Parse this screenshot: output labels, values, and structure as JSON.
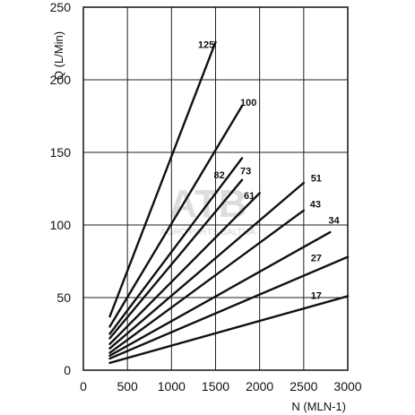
{
  "chart_data": {
    "type": "line",
    "title": "",
    "xlabel": "N (MLN-1)",
    "ylabel": "Q (L/Min)",
    "xlim": [
      0,
      3000
    ],
    "ylim": [
      0,
      250
    ],
    "x_ticks": [
      0,
      500,
      1000,
      1500,
      2000,
      2500,
      3000
    ],
    "y_ticks": [
      0,
      50,
      100,
      150,
      200,
      250
    ],
    "grid": true,
    "legend": "none",
    "watermark": {
      "logo_text": "ATB",
      "sub_text": "AGRO PARTS BALTIJA"
    },
    "series": [
      {
        "name": "125",
        "x": [
          300,
          1500
        ],
        "y": [
          37,
          226
        ],
        "label_at": [
          1300,
          222
        ]
      },
      {
        "name": "100",
        "x": [
          300,
          1800
        ],
        "y": [
          30,
          182
        ],
        "label_at": [
          1780,
          182
        ]
      },
      {
        "name": "82",
        "x": [
          300,
          1800
        ],
        "y": [
          25,
          146
        ],
        "label_at": [
          1480,
          132
        ]
      },
      {
        "name": "73",
        "x": [
          300,
          1800
        ],
        "y": [
          22,
          131
        ],
        "label_at": [
          1780,
          135
        ]
      },
      {
        "name": "61",
        "x": [
          300,
          2000
        ],
        "y": [
          18,
          122
        ],
        "label_at": [
          1820,
          118
        ]
      },
      {
        "name": "51",
        "x": [
          300,
          2500
        ],
        "y": [
          15,
          129
        ],
        "label_at": [
          2580,
          130
        ]
      },
      {
        "name": "43",
        "x": [
          300,
          2500
        ],
        "y": [
          12,
          110
        ],
        "label_at": [
          2570,
          112
        ]
      },
      {
        "name": "34",
        "x": [
          300,
          2800
        ],
        "y": [
          10,
          95
        ],
        "label_at": [
          2780,
          101
        ]
      },
      {
        "name": "27",
        "x": [
          300,
          3000
        ],
        "y": [
          8,
          78
        ],
        "label_at": [
          2580,
          75
        ]
      },
      {
        "name": "17",
        "x": [
          300,
          3000
        ],
        "y": [
          5,
          51
        ],
        "label_at": [
          2580,
          49
        ]
      }
    ]
  }
}
